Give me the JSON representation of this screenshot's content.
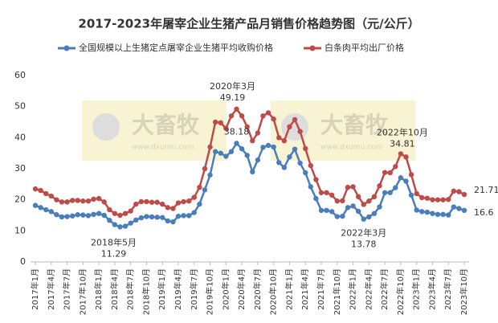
{
  "chart_data": {
    "type": "line",
    "title": "2017-2023年屠宰企业生猪产品月销售价格趋势图（元/公斤）",
    "categories": [
      "2017年1月",
      null,
      null,
      "2017年4月",
      null,
      null,
      "2017年7月",
      null,
      null,
      "2017年10月",
      null,
      null,
      "2018年1月",
      null,
      null,
      "2018年4月",
      null,
      null,
      "2018年7月",
      null,
      null,
      "2018年10月",
      null,
      null,
      "2019年1月",
      null,
      null,
      "2019年4月",
      null,
      null,
      "2019年7月",
      null,
      null,
      "2019年10月",
      null,
      null,
      "2020年1月",
      null,
      null,
      "2020年4月",
      null,
      null,
      "2020年7月",
      null,
      null,
      "2020年10月",
      null,
      null,
      "2021年1月",
      null,
      null,
      "2021年4月",
      null,
      null,
      "2021年7月",
      null,
      null,
      "2021年10月",
      null,
      null,
      "2022年1月",
      null,
      null,
      "2022年4月",
      null,
      null,
      "2022年7月",
      null,
      null,
      "2022年10月",
      null,
      null,
      "2023年1月",
      null,
      null,
      "2023年4月",
      null,
      null,
      "2023年7月",
      null,
      null,
      "2023年10月"
    ],
    "series": [
      {
        "name": "全国规模以上生猪定点屠宰企业生猪平均收购价格",
        "color": "#4a7ebb",
        "values": [
          18.2,
          17.5,
          16.8,
          16.2,
          15.2,
          14.5,
          14.6,
          14.8,
          15.2,
          15.1,
          14.9,
          15.3,
          15.6,
          15.0,
          13.4,
          12.0,
          11.29,
          11.5,
          12.5,
          13.5,
          14.2,
          14.6,
          14.5,
          14.4,
          14.3,
          13.2,
          12.9,
          14.7,
          14.9,
          14.9,
          15.9,
          18.6,
          23.2,
          28.0,
          35.5,
          35.0,
          34.0,
          35.5,
          38.18,
          36.4,
          34.3,
          29.0,
          32.8,
          36.9,
          37.5,
          37.0,
          32.0,
          30.4,
          33.8,
          36.3,
          31.8,
          28.7,
          24.2,
          20.4,
          16.6,
          16.6,
          16.2,
          14.6,
          14.7,
          17.5,
          18.0,
          16.3,
          13.78,
          14.5,
          15.6,
          17.7,
          22.3,
          22.3,
          23.9,
          27.1,
          26.0,
          21.5,
          16.7,
          16.2,
          16.0,
          15.6,
          15.3,
          15.3,
          15.1,
          17.7,
          17.2,
          16.6
        ]
      },
      {
        "name": "白条肉平均出厂价格",
        "color": "#be4b48",
        "values": [
          23.5,
          23.0,
          22.0,
          21.2,
          20.0,
          19.3,
          19.3,
          19.8,
          19.8,
          19.6,
          19.6,
          20.2,
          20.4,
          19.3,
          16.8,
          15.6,
          15.0,
          15.6,
          16.4,
          18.6,
          19.4,
          19.4,
          19.2,
          19.2,
          18.6,
          17.5,
          17.2,
          19.0,
          19.4,
          19.6,
          20.8,
          24.0,
          30.0,
          37.0,
          45.0,
          44.8,
          43.0,
          47.0,
          49.19,
          47.0,
          43.5,
          39.0,
          41.5,
          47.0,
          48.0,
          46.0,
          40.0,
          39.0,
          43.5,
          45.8,
          42.0,
          36.5,
          31.0,
          26.5,
          22.3,
          22.3,
          21.5,
          19.6,
          19.7,
          24.0,
          24.2,
          21.0,
          18.5,
          19.6,
          21.0,
          24.5,
          28.8,
          28.7,
          30.7,
          34.81,
          33.8,
          28.1,
          22.0,
          20.7,
          20.5,
          20.0,
          20.0,
          20.0,
          20.1,
          22.8,
          22.6,
          21.71
        ]
      }
    ],
    "annotations": [
      "2020年3月",
      "2018年5月",
      "2022年3月",
      "2022年10月"
    ],
    "watermark": [
      "大畜牧",
      "www.dxumu.com"
    ],
    "ylim": [
      0,
      60
    ],
    "yticks": [
      0,
      10,
      20,
      30,
      40,
      50,
      60
    ],
    "grid": false,
    "legend": "top"
  }
}
